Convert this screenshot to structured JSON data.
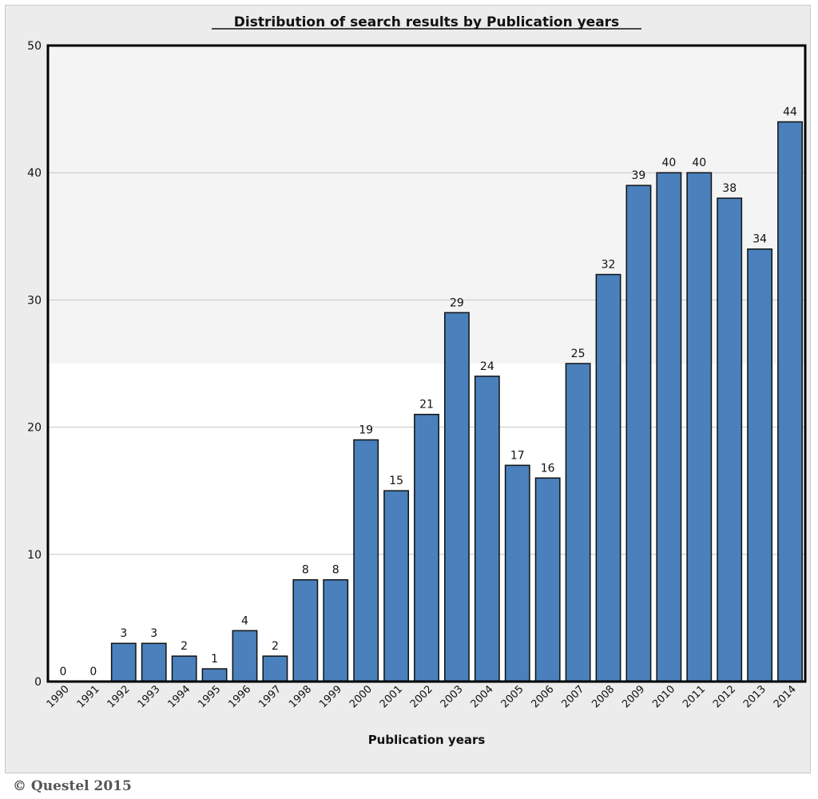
{
  "chart_data": {
    "type": "bar",
    "title": "Distribution of search results by Publication years",
    "xlabel": "Publication years",
    "ylabel": "",
    "ylim": [
      0,
      50
    ],
    "yticks": [
      0,
      10,
      20,
      30,
      40,
      50
    ],
    "categories": [
      "1990",
      "1991",
      "1992",
      "1993",
      "1994",
      "1995",
      "1996",
      "1997",
      "1998",
      "1999",
      "2000",
      "2001",
      "2002",
      "2003",
      "2004",
      "2005",
      "2006",
      "2007",
      "2008",
      "2009",
      "2010",
      "2011",
      "2012",
      "2013",
      "2014"
    ],
    "values": [
      0,
      0,
      3,
      3,
      2,
      1,
      4,
      2,
      8,
      8,
      19,
      15,
      21,
      29,
      24,
      17,
      16,
      25,
      32,
      39,
      40,
      40,
      38,
      34,
      44
    ],
    "bar_color": "#4a80bc",
    "grid": true
  },
  "footer": {
    "copyright": "© Questel 2015"
  }
}
